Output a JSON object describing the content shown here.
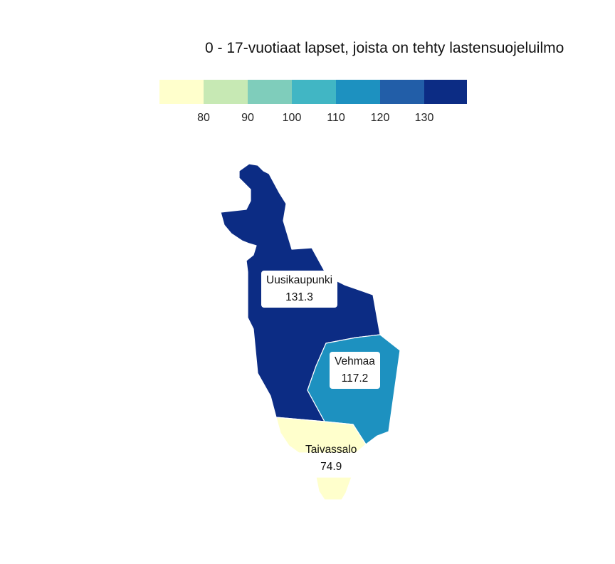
{
  "title": "0 - 17-vuotiaat lapset, joista on tehty lastensuojeluilmo",
  "legend": {
    "colors": [
      "#ffffcc",
      "#c7e9b4",
      "#7fcdbb",
      "#41b6c4",
      "#1d91c0",
      "#225ea8",
      "#0c2c84"
    ],
    "ticks": [
      "80",
      "90",
      "100",
      "110",
      "120",
      "130"
    ]
  },
  "regions": [
    {
      "name": "Uusikaupunki",
      "value": "131.3",
      "color": "#0c2c84"
    },
    {
      "name": "Vehmaa",
      "value": "117.2",
      "color": "#1d91c0"
    },
    {
      "name": "Taivassalo",
      "value": "74.9",
      "color": "#ffffcc"
    }
  ]
}
